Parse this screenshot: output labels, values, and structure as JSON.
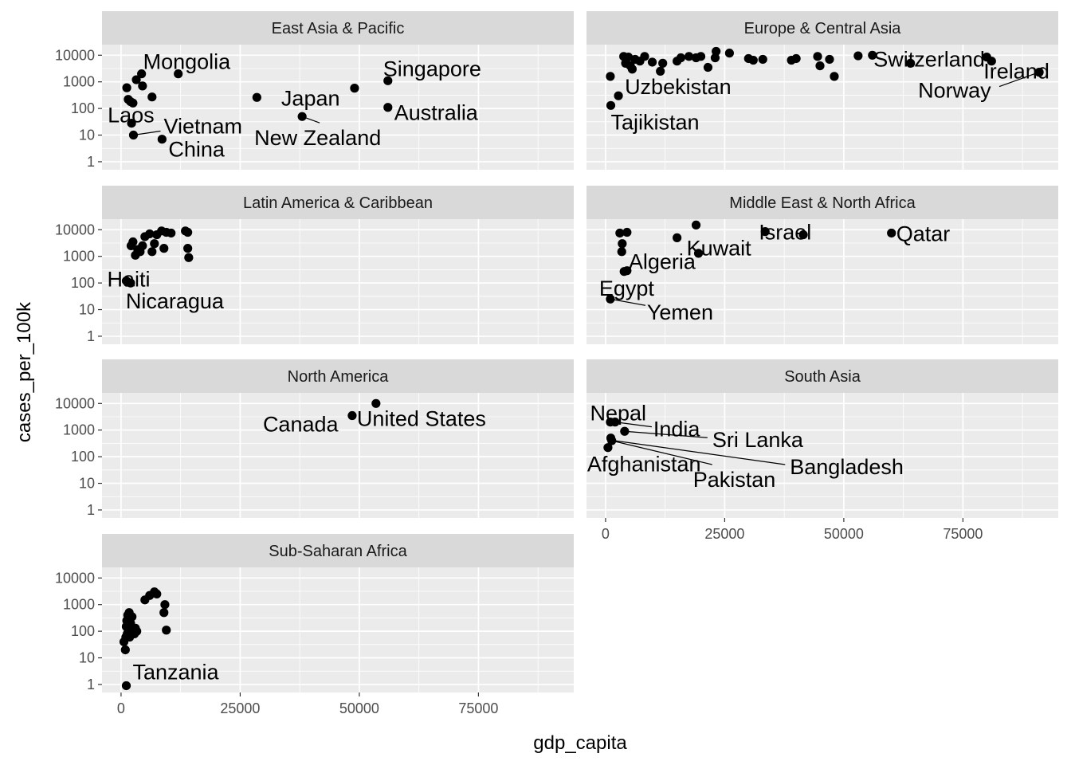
{
  "chart_data": {
    "type": "scatter",
    "facet_by": "region",
    "xlabel": "gdp_capita",
    "ylabel": "cases_per_100k",
    "x_scale": "linear",
    "y_scale": "log10",
    "xlim": [
      -4000,
      95000
    ],
    "ylim": [
      0.5,
      25000
    ],
    "x_ticks": [
      0,
      25000,
      50000,
      75000
    ],
    "y_ticks": [
      1,
      10,
      100,
      1000,
      10000
    ],
    "grid": true,
    "panels": [
      {
        "title": "East Asia & Pacific",
        "points": [
          {
            "x": 1200,
            "y": 600
          },
          {
            "x": 1500,
            "y": 220
          },
          {
            "x": 2000,
            "y": 180
          },
          {
            "x": 2500,
            "y": 160
          },
          {
            "x": 3200,
            "y": 1200
          },
          {
            "x": 4500,
            "y": 700
          },
          {
            "x": 6500,
            "y": 270
          },
          {
            "x": 4300,
            "y": 2000
          },
          {
            "x": 12000,
            "y": 2000
          },
          {
            "x": 28500,
            "y": 260
          },
          {
            "x": 49000,
            "y": 580
          },
          {
            "x": 56000,
            "y": 1100
          },
          {
            "x": 56000,
            "y": 110
          },
          {
            "x": 38000,
            "y": 50
          },
          {
            "x": 2200,
            "y": 28
          },
          {
            "x": 2600,
            "y": 10
          },
          {
            "x": 8600,
            "y": 7
          }
        ],
        "labels": [
          {
            "text": "Mongolia",
            "x": 4300,
            "y": 2000
          },
          {
            "text": "Singapore",
            "x": 56000,
            "y": 1100
          },
          {
            "text": "Japan",
            "x": 49000,
            "y": 580
          },
          {
            "text": "Australia",
            "x": 56000,
            "y": 110
          },
          {
            "text": "Laos",
            "x": 2200,
            "y": 28
          },
          {
            "text": "Vietnam",
            "x": 2600,
            "y": 10
          },
          {
            "text": "New Zealand",
            "x": 38000,
            "y": 50
          },
          {
            "text": "China",
            "x": 8600,
            "y": 7
          }
        ]
      },
      {
        "title": "Europe & Central Asia",
        "points": [
          {
            "x": 1000,
            "y": 1600
          },
          {
            "x": 1100,
            "y": 130
          },
          {
            "x": 2700,
            "y": 300
          },
          {
            "x": 3800,
            "y": 9000
          },
          {
            "x": 4200,
            "y": 5000
          },
          {
            "x": 4800,
            "y": 8500
          },
          {
            "x": 5200,
            "y": 4000
          },
          {
            "x": 5600,
            "y": 3000
          },
          {
            "x": 6200,
            "y": 7000
          },
          {
            "x": 7200,
            "y": 6000
          },
          {
            "x": 8200,
            "y": 9000
          },
          {
            "x": 9800,
            "y": 5500
          },
          {
            "x": 11500,
            "y": 2500
          },
          {
            "x": 12000,
            "y": 5000
          },
          {
            "x": 15000,
            "y": 6000
          },
          {
            "x": 15800,
            "y": 8000
          },
          {
            "x": 17500,
            "y": 9000
          },
          {
            "x": 19000,
            "y": 8000
          },
          {
            "x": 20000,
            "y": 9000
          },
          {
            "x": 21500,
            "y": 3500
          },
          {
            "x": 23000,
            "y": 8000
          },
          {
            "x": 23200,
            "y": 14000
          },
          {
            "x": 26000,
            "y": 12000
          },
          {
            "x": 30000,
            "y": 7500
          },
          {
            "x": 31000,
            "y": 6500
          },
          {
            "x": 33000,
            "y": 7000
          },
          {
            "x": 39000,
            "y": 6500
          },
          {
            "x": 40000,
            "y": 7500
          },
          {
            "x": 44500,
            "y": 9000
          },
          {
            "x": 45000,
            "y": 4000
          },
          {
            "x": 47000,
            "y": 7000
          },
          {
            "x": 48000,
            "y": 1600
          },
          {
            "x": 53000,
            "y": 9500
          },
          {
            "x": 56000,
            "y": 10000
          },
          {
            "x": 64000,
            "y": 5000
          },
          {
            "x": 80000,
            "y": 8500
          },
          {
            "x": 81000,
            "y": 6000
          },
          {
            "x": 91000,
            "y": 2300
          }
        ],
        "labels": [
          {
            "text": "Switzerland",
            "x": 80000,
            "y": 8500
          },
          {
            "text": "Ireland",
            "x": 81000,
            "y": 6000
          },
          {
            "text": "Norway",
            "x": 91000,
            "y": 2300
          },
          {
            "text": "Uzbekistan",
            "x": 2700,
            "y": 300
          },
          {
            "text": "Tajikistan",
            "x": 1100,
            "y": 130
          }
        ]
      },
      {
        "title": "Latin America & Caribbean",
        "points": [
          {
            "x": 1100,
            "y": 120
          },
          {
            "x": 2000,
            "y": 100
          },
          {
            "x": 2100,
            "y": 2500
          },
          {
            "x": 2500,
            "y": 3500
          },
          {
            "x": 3000,
            "y": 1100
          },
          {
            "x": 3500,
            "y": 1800
          },
          {
            "x": 4000,
            "y": 1500
          },
          {
            "x": 4500,
            "y": 2500
          },
          {
            "x": 5000,
            "y": 5500
          },
          {
            "x": 6000,
            "y": 7000
          },
          {
            "x": 6500,
            "y": 1500
          },
          {
            "x": 7000,
            "y": 3000
          },
          {
            "x": 7500,
            "y": 6500
          },
          {
            "x": 8500,
            "y": 9000
          },
          {
            "x": 9000,
            "y": 2000
          },
          {
            "x": 9500,
            "y": 8000
          },
          {
            "x": 10500,
            "y": 7500
          },
          {
            "x": 13500,
            "y": 9000
          },
          {
            "x": 14000,
            "y": 8000
          },
          {
            "x": 14000,
            "y": 2000
          },
          {
            "x": 14200,
            "y": 900
          }
        ],
        "labels": [
          {
            "text": "Haiti",
            "x": 1100,
            "y": 120
          },
          {
            "text": "Nicaragua",
            "x": 2000,
            "y": 100
          }
        ]
      },
      {
        "title": "Middle East & North Africa",
        "points": [
          {
            "x": 1000,
            "y": 25
          },
          {
            "x": 3000,
            "y": 7500
          },
          {
            "x": 3400,
            "y": 1500
          },
          {
            "x": 3500,
            "y": 3000
          },
          {
            "x": 3900,
            "y": 270
          },
          {
            "x": 4500,
            "y": 8000
          },
          {
            "x": 4500,
            "y": 290
          },
          {
            "x": 15000,
            "y": 5000
          },
          {
            "x": 19000,
            "y": 15000
          },
          {
            "x": 19500,
            "y": 1300
          },
          {
            "x": 33500,
            "y": 8500
          },
          {
            "x": 41500,
            "y": 6500
          },
          {
            "x": 60000,
            "y": 7500
          }
        ],
        "labels": [
          {
            "text": "Qatar",
            "x": 60000,
            "y": 7500
          },
          {
            "text": "Israel",
            "x": 33500,
            "y": 8500
          },
          {
            "text": "Kuwait",
            "x": 15000,
            "y": 5000
          },
          {
            "text": "Algeria",
            "x": 4500,
            "y": 290
          },
          {
            "text": "Egypt",
            "x": 3000,
            "y": 25
          },
          {
            "text": "Yemen",
            "x": 1000,
            "y": 25
          }
        ]
      },
      {
        "title": "North America",
        "points": [
          {
            "x": 48500,
            "y": 3500
          },
          {
            "x": 53500,
            "y": 10000
          }
        ],
        "labels": [
          {
            "text": "United States",
            "x": 53500,
            "y": 10000
          },
          {
            "text": "Canada",
            "x": 48500,
            "y": 3500
          }
        ]
      },
      {
        "title": "South Asia",
        "points": [
          {
            "x": 500,
            "y": 220
          },
          {
            "x": 1000,
            "y": 2000
          },
          {
            "x": 1100,
            "y": 500
          },
          {
            "x": 1300,
            "y": 400
          },
          {
            "x": 2000,
            "y": 2000
          },
          {
            "x": 4000,
            "y": 900
          }
        ],
        "labels": [
          {
            "text": "Nepal",
            "x": 1100,
            "y": 2000
          },
          {
            "text": "India",
            "x": 2000,
            "y": 2000
          },
          {
            "text": "Sri Lanka",
            "x": 4000,
            "y": 900
          },
          {
            "text": "Bangladesh",
            "x": 1900,
            "y": 400
          },
          {
            "text": "Afghanistan",
            "x": 500,
            "y": 220
          },
          {
            "text": "Pakistan",
            "x": 1300,
            "y": 400
          }
        ]
      },
      {
        "title": "Sub-Saharan Africa",
        "points": [
          {
            "x": 600,
            "y": 40
          },
          {
            "x": 900,
            "y": 20
          },
          {
            "x": 1000,
            "y": 60
          },
          {
            "x": 1100,
            "y": 150
          },
          {
            "x": 1200,
            "y": 250
          },
          {
            "x": 1300,
            "y": 80
          },
          {
            "x": 1400,
            "y": 400
          },
          {
            "x": 1500,
            "y": 110
          },
          {
            "x": 1700,
            "y": 500
          },
          {
            "x": 1800,
            "y": 60
          },
          {
            "x": 2000,
            "y": 200
          },
          {
            "x": 2100,
            "y": 120
          },
          {
            "x": 2300,
            "y": 350
          },
          {
            "x": 2500,
            "y": 90
          },
          {
            "x": 2800,
            "y": 80
          },
          {
            "x": 3000,
            "y": 130
          },
          {
            "x": 3300,
            "y": 100
          },
          {
            "x": 5000,
            "y": 1500
          },
          {
            "x": 6000,
            "y": 2200
          },
          {
            "x": 7000,
            "y": 3000
          },
          {
            "x": 7500,
            "y": 2500
          },
          {
            "x": 9000,
            "y": 500
          },
          {
            "x": 9200,
            "y": 1000
          },
          {
            "x": 9500,
            "y": 110
          },
          {
            "x": 1100,
            "y": 0.9
          }
        ],
        "labels": [
          {
            "text": "Tanzania",
            "x": 1100,
            "y": 0.9
          }
        ]
      }
    ]
  }
}
